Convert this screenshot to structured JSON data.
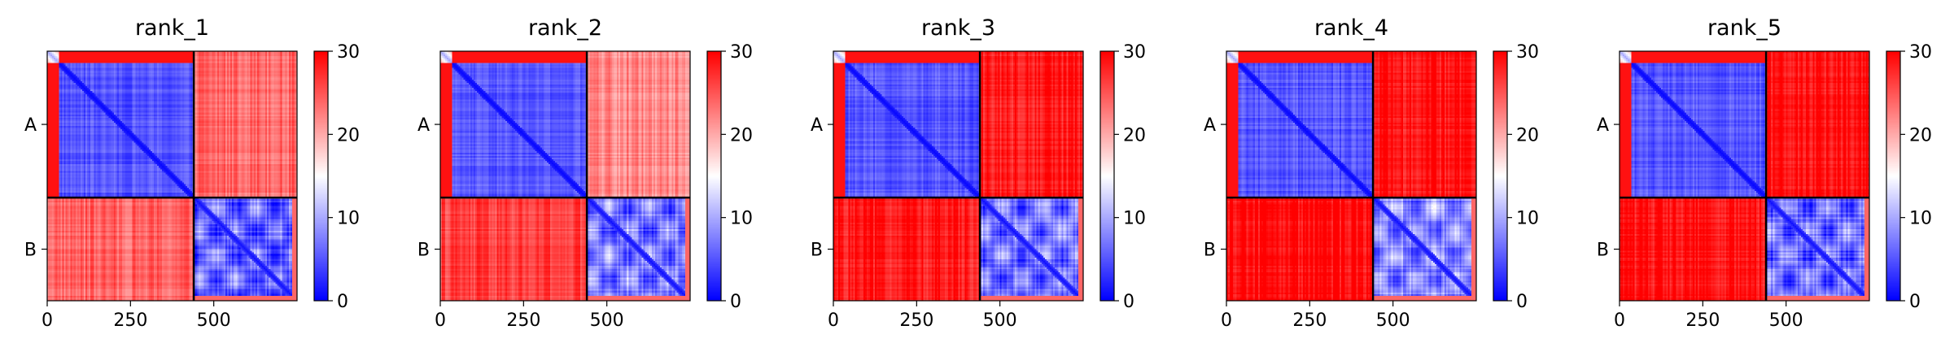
{
  "chart_data": {
    "type": "heatmap",
    "colormap": {
      "name": "bwr",
      "min_color": "#0000ff",
      "mid_color": "#ffffff",
      "max_color": "#ff0000"
    },
    "colorbar": {
      "vmin": 0,
      "vmax": 30,
      "ticks": [
        "0",
        "10",
        "20",
        "30"
      ]
    },
    "sequence_length": 750,
    "chains": [
      {
        "name": "A",
        "start": 0,
        "end": 440
      },
      {
        "name": "B",
        "start": 440,
        "end": 750
      }
    ],
    "x_ticks": [
      {
        "value": 0,
        "label": "0"
      },
      {
        "value": 250,
        "label": "250"
      },
      {
        "value": 500,
        "label": "500"
      }
    ],
    "panels": [
      {
        "title": "rank_1",
        "block_means": {
          "AA": 5,
          "AB": 24,
          "BA": 24,
          "BB": 6
        }
      },
      {
        "title": "rank_2",
        "block_means": {
          "AA": 5,
          "AB": 22,
          "BA": 26,
          "BB": 7
        }
      },
      {
        "title": "rank_3",
        "block_means": {
          "AA": 5,
          "AB": 28.5,
          "BA": 28.5,
          "BB": 7
        }
      },
      {
        "title": "rank_4",
        "block_means": {
          "AA": 5,
          "AB": 29,
          "BA": 29.5,
          "BB": 8
        }
      },
      {
        "title": "rank_5",
        "block_means": {
          "AA": 5,
          "AB": 29.5,
          "BA": 29,
          "BB": 7
        }
      }
    ]
  }
}
